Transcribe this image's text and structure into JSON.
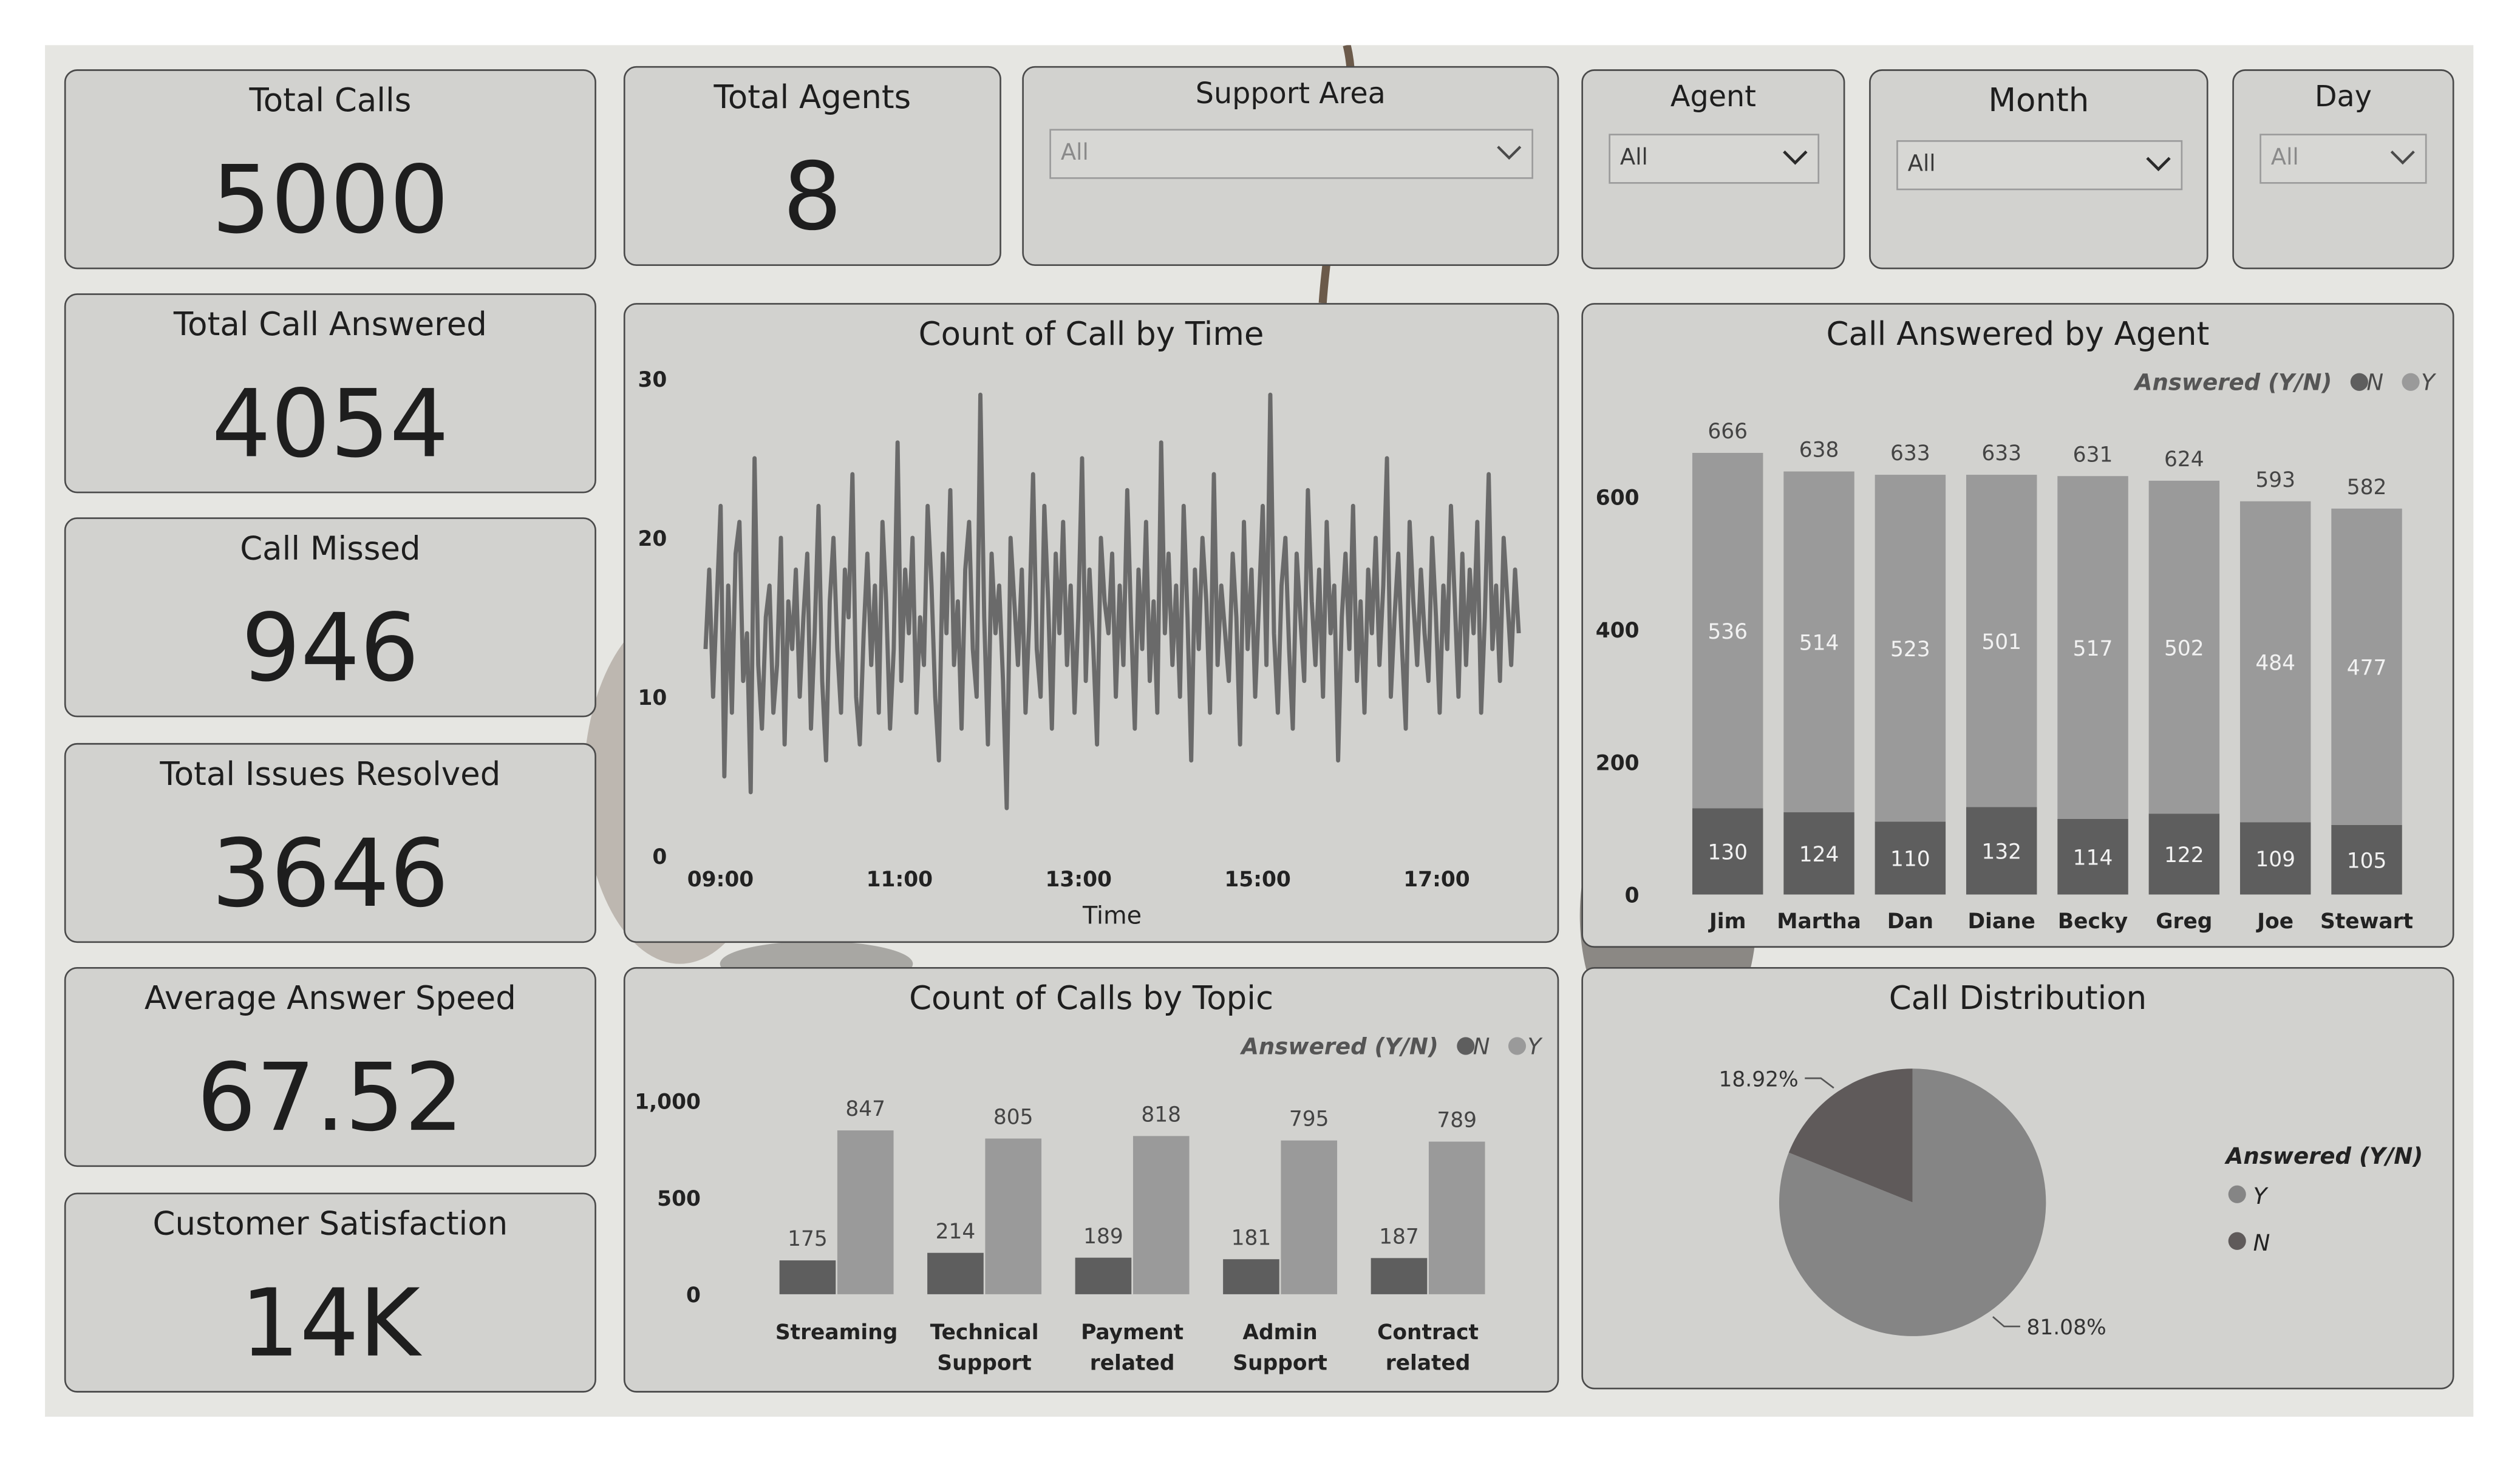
{
  "kpis": {
    "total_calls": {
      "label": "Total Calls",
      "value": "5000"
    },
    "total_call_answered": {
      "label": "Total Call Answered",
      "value": "4054"
    },
    "call_missed": {
      "label": "Call Missed",
      "value": "946"
    },
    "total_issues_resolved": {
      "label": "Total Issues Resolved",
      "value": "3646"
    },
    "average_answer_speed": {
      "label": "Average Answer Speed",
      "value": "67.52"
    },
    "customer_satisfaction": {
      "label": "Customer Satisfaction",
      "value": "14K"
    },
    "total_agents": {
      "label": "Total Agents",
      "value": "8"
    }
  },
  "slicers": {
    "support_area": {
      "label": "Support Area",
      "value": "All"
    },
    "agent": {
      "label": "Agent",
      "value": "All"
    },
    "month": {
      "label": "Month",
      "value": "All"
    },
    "day": {
      "label": "Day",
      "value": "All"
    }
  },
  "legend": {
    "title": "Answered (Y/N)",
    "n": "N",
    "y": "Y"
  },
  "colors": {
    "n": "#5e5e5e",
    "y": "#9a9a9a",
    "line": "#6a6a6a",
    "pie_y": "#858585",
    "pie_n": "#5f5a5a"
  },
  "icons": {
    "dropdown": "chevron-down-icon",
    "legend_marker": "circle-icon"
  },
  "chart_data": [
    {
      "id": "time",
      "type": "line",
      "title": "Count of Call by Time",
      "xlabel": "Time",
      "ylabel": "",
      "ylim": [
        0,
        30
      ],
      "yticks": [
        "0",
        "10",
        "20",
        "30"
      ],
      "xticks": [
        "09:00",
        "11:00",
        "13:00",
        "15:00",
        "17:00"
      ],
      "x_range": [
        "08:50",
        "17:55"
      ],
      "grid": false,
      "series": [
        {
          "values": [
            13,
            18,
            10,
            16,
            22,
            5,
            17,
            9,
            19,
            21,
            11,
            14,
            4,
            25,
            12,
            8,
            15,
            17,
            9,
            12,
            20,
            7,
            16,
            13,
            18,
            10,
            15,
            19,
            8,
            14,
            22,
            11,
            6,
            16,
            20,
            13,
            9,
            18,
            15,
            24,
            10,
            7,
            14,
            19,
            12,
            17,
            9,
            21,
            16,
            8,
            13,
            26,
            11,
            18,
            14,
            20,
            9,
            15,
            12,
            22,
            17,
            10,
            6,
            19,
            14,
            23,
            12,
            16,
            8,
            18,
            21,
            13,
            10,
            29,
            15,
            7,
            19,
            14,
            17,
            11,
            3,
            20,
            16,
            12,
            18,
            9,
            15,
            24,
            13,
            10,
            22,
            16,
            8,
            19,
            14,
            21,
            12,
            17,
            9,
            15,
            25,
            11,
            18,
            13,
            7,
            20,
            16,
            14,
            19,
            10,
            17,
            12,
            23,
            15,
            8,
            18,
            13,
            21,
            11,
            16,
            9,
            26,
            14,
            19,
            12,
            17,
            10,
            22,
            15,
            6,
            18,
            13,
            20,
            16,
            9,
            24,
            12,
            17,
            14,
            11,
            19,
            15,
            7,
            21,
            13,
            18,
            10,
            16,
            22,
            12,
            29,
            14,
            9,
            17,
            20,
            13,
            8,
            19,
            15,
            11,
            23,
            16,
            12,
            18,
            10,
            21,
            14,
            17,
            6,
            15,
            19,
            13,
            22,
            11,
            16,
            9,
            18,
            14,
            20,
            12,
            17,
            25,
            10,
            15,
            19,
            13,
            8,
            21,
            16,
            12,
            18,
            14,
            11,
            20,
            15,
            9,
            17,
            13,
            22,
            16,
            10,
            19,
            12,
            18,
            14,
            21,
            9,
            15,
            24,
            13,
            17,
            11,
            20,
            16,
            12,
            18,
            14
          ]
        }
      ]
    },
    {
      "id": "agent",
      "type": "bar",
      "title": "Call Answered by Agent",
      "stacked": true,
      "xlabel": "",
      "ylabel": "",
      "ylim": [
        0,
        700
      ],
      "yticks": [
        "0",
        "200",
        "400",
        "600"
      ],
      "legend_placement": "top-right",
      "categories": [
        "Jim",
        "Martha",
        "Dan",
        "Diane",
        "Becky",
        "Greg",
        "Joe",
        "Stewart"
      ],
      "totals": [
        666,
        638,
        633,
        633,
        631,
        624,
        593,
        582
      ],
      "series": [
        {
          "name": "N",
          "values": [
            130,
            124,
            110,
            132,
            114,
            122,
            109,
            105
          ]
        },
        {
          "name": "Y",
          "values": [
            536,
            514,
            523,
            501,
            517,
            502,
            484,
            477
          ]
        }
      ]
    },
    {
      "id": "topic",
      "type": "bar",
      "title": "Count of Calls by Topic",
      "xlabel": "",
      "ylabel": "",
      "ylim": [
        0,
        1000
      ],
      "yticks": [
        "0",
        "500",
        "1,000"
      ],
      "legend_placement": "top-right",
      "categories": [
        [
          "Streaming"
        ],
        [
          "Technical",
          "Support"
        ],
        [
          "Payment",
          "related"
        ],
        [
          "Admin",
          "Support"
        ],
        [
          "Contract",
          "related"
        ]
      ],
      "series": [
        {
          "name": "N",
          "values": [
            175,
            214,
            189,
            181,
            187
          ]
        },
        {
          "name": "Y",
          "values": [
            847,
            805,
            818,
            795,
            789
          ]
        }
      ]
    },
    {
      "id": "distribution",
      "type": "pie",
      "title": "Call Distribution",
      "legend_placement": "right",
      "slices": [
        {
          "name": "Y",
          "value": 81.08,
          "label": "81.08%"
        },
        {
          "name": "N",
          "value": 18.92,
          "label": "18.92%"
        }
      ]
    }
  ]
}
